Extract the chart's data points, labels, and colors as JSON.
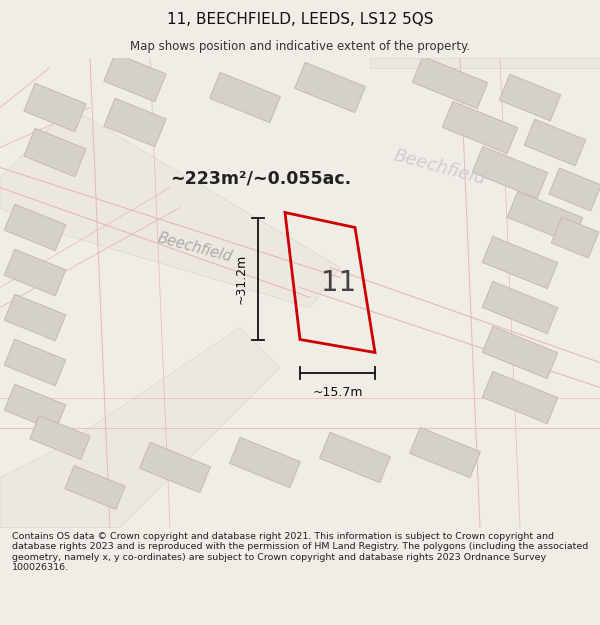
{
  "title": "11, BEECHFIELD, LEEDS, LS12 5QS",
  "subtitle": "Map shows position and indicative extent of the property.",
  "area_text": "~223m²/~0.055ac.",
  "label_11": "11",
  "dim_width": "~15.7m",
  "dim_height": "~31.2m",
  "footer": "Contains OS data © Crown copyright and database right 2021. This information is subject to Crown copyright and database rights 2023 and is reproduced with the permission of HM Land Registry. The polygons (including the associated geometry, namely x, y co-ordinates) are subject to Crown copyright and database rights 2023 Ordnance Survey 100026316.",
  "bg_color": "#f0ece6",
  "title_color": "#111111",
  "subtitle_color": "#333333",
  "plot_color": "#cc0000",
  "building_fill": "#d6d1c8",
  "building_edge": "#c8b8b0",
  "dim_color": "#111111",
  "street1_color": "#aaaaaa",
  "street2_color": "#cccccc",
  "footer_color": "#222222"
}
